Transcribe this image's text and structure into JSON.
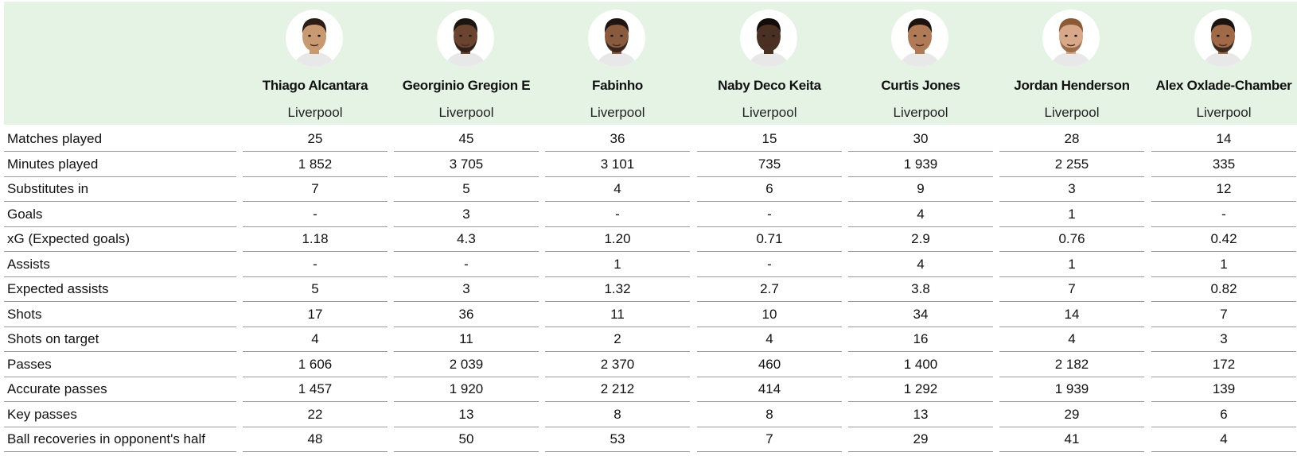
{
  "players": [
    {
      "name": "Thiago Alcantara",
      "team": "Liverpool",
      "avatar_icon": "player-headshot-icon",
      "skin": "#c99a72",
      "hair": "#2a1d16",
      "beard": false
    },
    {
      "name": "Georginio Gregion E",
      "team": "Liverpool",
      "avatar_icon": "player-headshot-icon",
      "skin": "#6b4430",
      "hair": "#1b1410",
      "beard": true
    },
    {
      "name": "Fabinho",
      "team": "Liverpool",
      "avatar_icon": "player-headshot-icon",
      "skin": "#8a5a3e",
      "hair": "#1d1510",
      "beard": true
    },
    {
      "name": "Naby Deco Keita",
      "team": "Liverpool",
      "avatar_icon": "player-headshot-icon",
      "skin": "#4a3022",
      "hair": "#120d0a",
      "beard": false
    },
    {
      "name": "Curtis Jones",
      "team": "Liverpool",
      "avatar_icon": "player-headshot-icon",
      "skin": "#b07a56",
      "hair": "#1a1310",
      "beard": false
    },
    {
      "name": "Jordan Henderson",
      "team": "Liverpool",
      "avatar_icon": "player-headshot-icon",
      "skin": "#d8a888",
      "hair": "#8a5a36",
      "beard": true
    },
    {
      "name": "Alex Oxlade-Chamber",
      "team": "Liverpool",
      "avatar_icon": "player-headshot-icon",
      "skin": "#a06a48",
      "hair": "#1a1310",
      "beard": true
    }
  ],
  "stats": [
    {
      "label": "Matches played",
      "values": [
        "25",
        "45",
        "36",
        "15",
        "30",
        "28",
        "14"
      ]
    },
    {
      "label": "Minutes played",
      "values": [
        "1 852",
        "3 705",
        "3 101",
        "735",
        "1 939",
        "2 255",
        "335"
      ]
    },
    {
      "label": "Substitutes in",
      "values": [
        "7",
        "5",
        "4",
        "6",
        "9",
        "3",
        "12"
      ]
    },
    {
      "label": "Goals",
      "values": [
        "-",
        "3",
        "-",
        "-",
        "4",
        "1",
        "-"
      ]
    },
    {
      "label": "xG (Expected goals)",
      "values": [
        "1.18",
        "4.3",
        "1.20",
        "0.71",
        "2.9",
        "0.76",
        "0.42"
      ]
    },
    {
      "label": "Assists",
      "values": [
        "-",
        "-",
        "1",
        "-",
        "4",
        "1",
        "1"
      ]
    },
    {
      "label": "Expected assists",
      "values": [
        "5",
        "3",
        "1.32",
        "2.7",
        "3.8",
        "7",
        "0.82"
      ]
    },
    {
      "label": "Shots",
      "values": [
        "17",
        "36",
        "11",
        "10",
        "34",
        "14",
        "7"
      ]
    },
    {
      "label": "Shots on target",
      "values": [
        "4",
        "11",
        "2",
        "4",
        "16",
        "4",
        "3"
      ]
    },
    {
      "label": "Passes",
      "values": [
        "1 606",
        "2 039",
        "2 370",
        "460",
        "1 400",
        "2 182",
        "172"
      ]
    },
    {
      "label": "Accurate passes",
      "values": [
        "1 457",
        "1 920",
        "2 212",
        "414",
        "1 292",
        "1 939",
        "139"
      ]
    },
    {
      "label": "Key passes",
      "values": [
        "22",
        "13",
        "8",
        "8",
        "13",
        "29",
        "6"
      ]
    },
    {
      "label": "Ball recoveries in opponent's half",
      "values": [
        "48",
        "50",
        "53",
        "7",
        "29",
        "41",
        "4"
      ]
    }
  ]
}
